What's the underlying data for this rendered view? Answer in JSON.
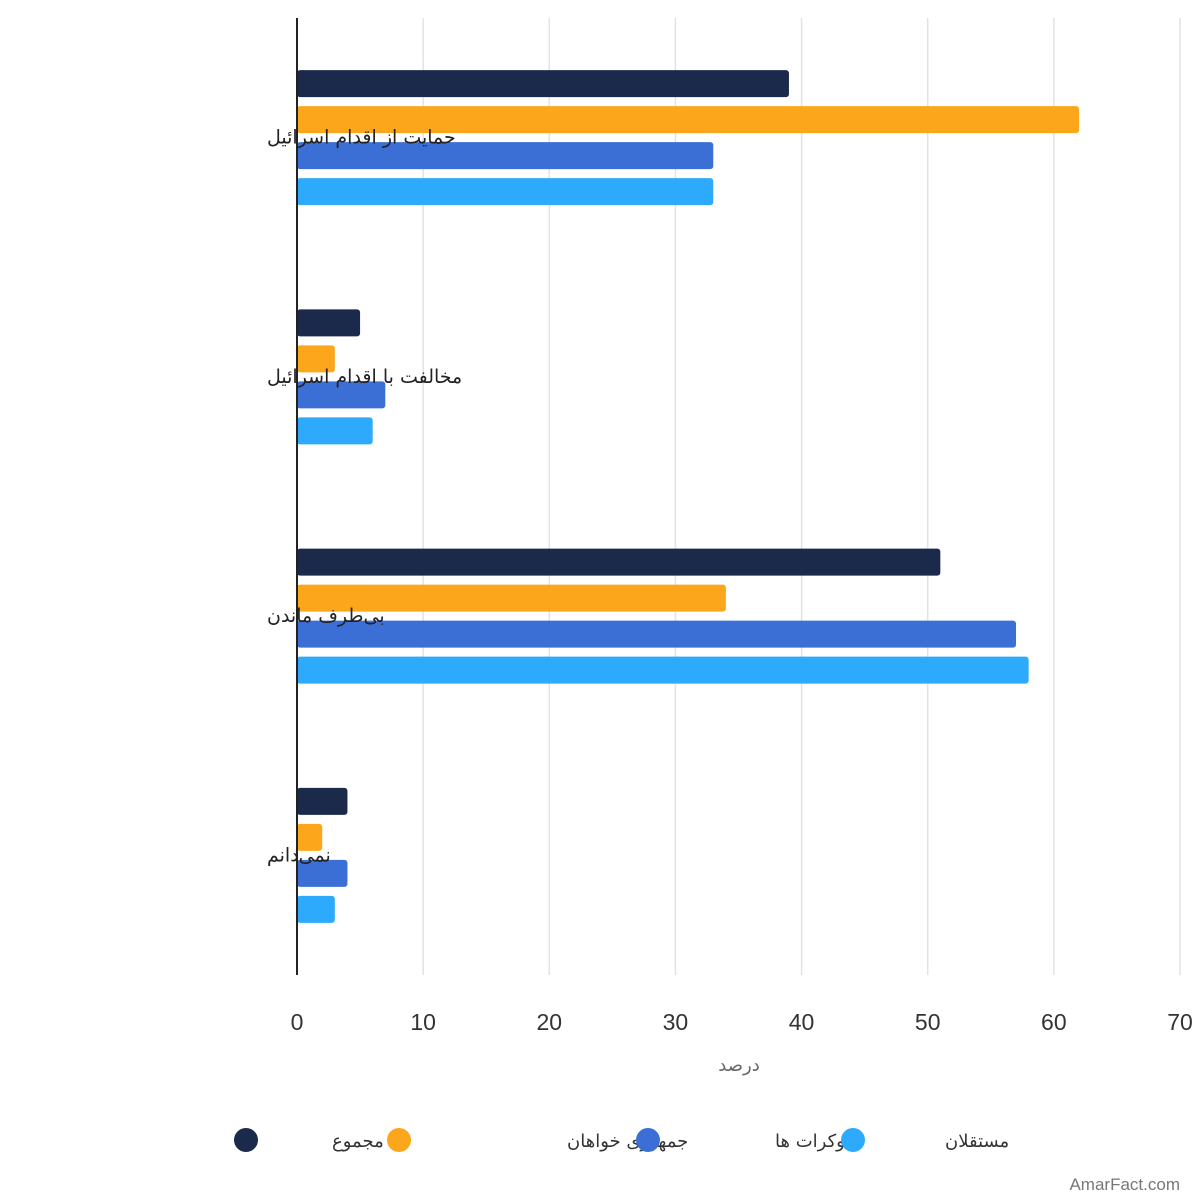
{
  "chart_data": {
    "type": "bar",
    "orientation": "horizontal",
    "categories": [
      "حمایت از اقدام اسرائیل",
      "مخالفت با اقدام اسرائیل",
      "بی‌طرف ماندن",
      "نمی‌دانم"
    ],
    "series": [
      {
        "name": "مجموع",
        "color": "#1b2a4a",
        "values": [
          39,
          5,
          51,
          4
        ]
      },
      {
        "name": "جمهوری خواهان",
        "color": "#fca61b",
        "values": [
          62,
          3,
          34,
          2
        ]
      },
      {
        "name": "دموکرات ها",
        "color": "#3b6fd6",
        "values": [
          33,
          7,
          57,
          4
        ]
      },
      {
        "name": "مستقلان",
        "color": "#2eaafc",
        "values": [
          33,
          6,
          58,
          3
        ]
      }
    ],
    "xlabel": "درصد",
    "xlim": [
      0,
      70
    ],
    "xticks": [
      "0",
      "10",
      "20",
      "30",
      "40",
      "50",
      "60",
      "70"
    ],
    "grid": true,
    "legend_position": "bottom"
  },
  "watermark": "AmarFact.com"
}
